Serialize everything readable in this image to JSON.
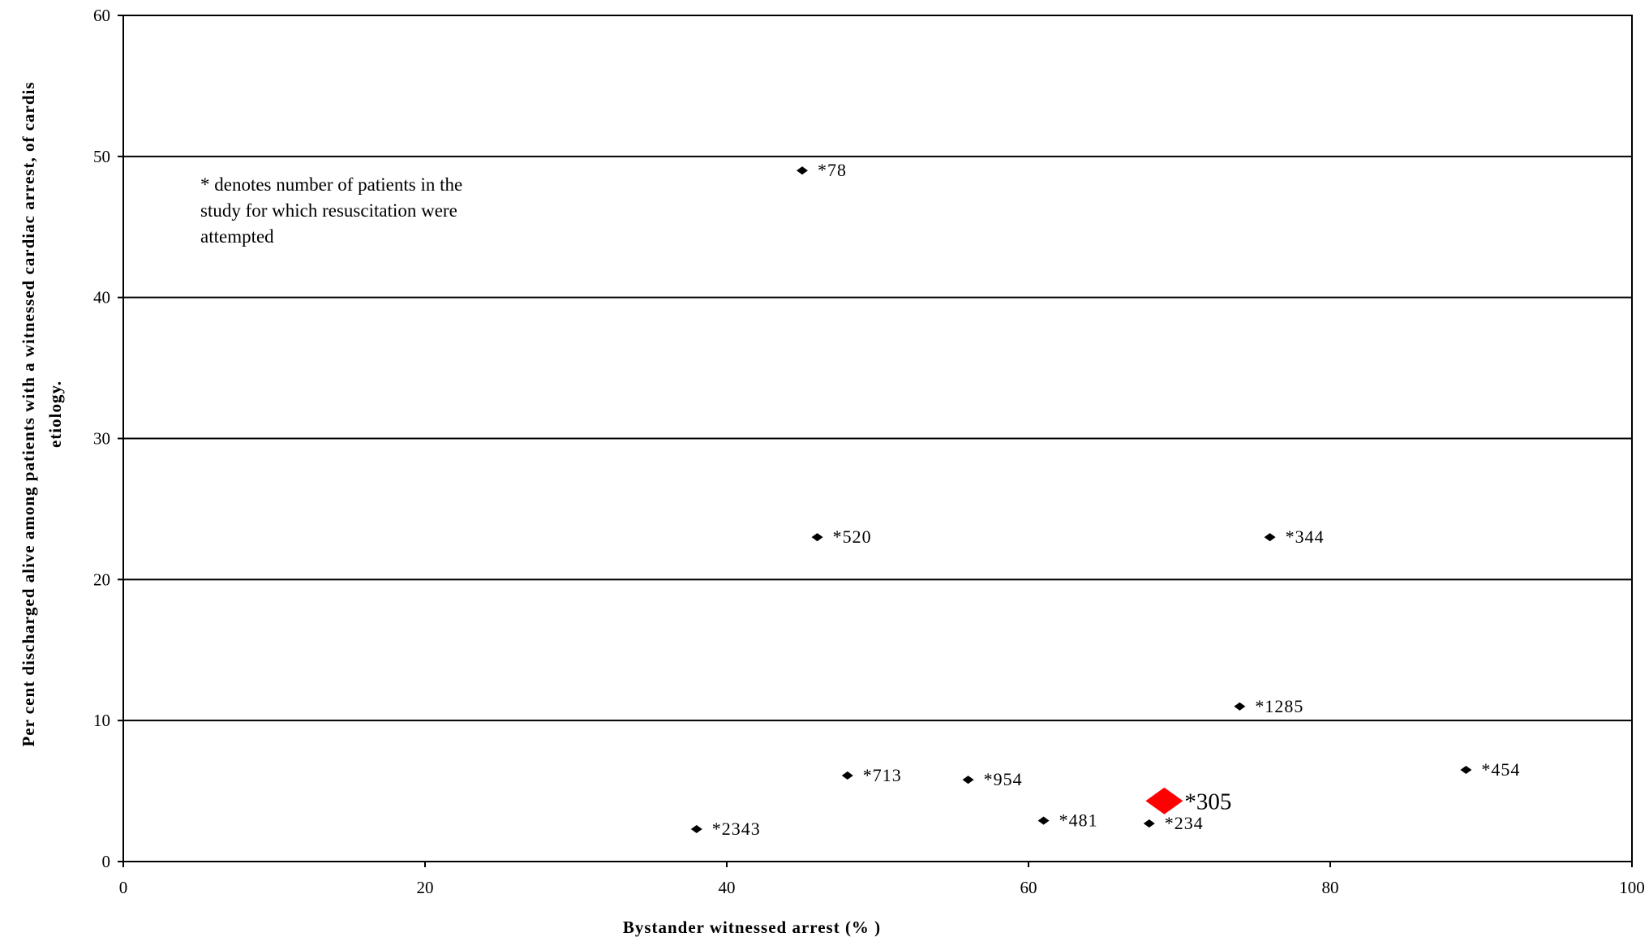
{
  "chart_data": {
    "type": "scatter",
    "title": "",
    "xlabel": "Bystander witnessed arrest (% )",
    "ylabel": [
      "Per cent discharged alive among patients with a witnessed cardiac arrest, of cardis",
      "etiology."
    ],
    "xlim": [
      0,
      100
    ],
    "ylim": [
      0,
      60
    ],
    "x_ticks": [
      0,
      20,
      40,
      60,
      80,
      100
    ],
    "x_tick_labels": [
      "0",
      "20",
      "40",
      "60",
      "80",
      "100"
    ],
    "y_ticks": [
      0,
      10,
      20,
      30,
      40,
      50,
      60
    ],
    "y_tick_labels": [
      "0",
      "10",
      "20",
      "30",
      "40",
      "50",
      "60"
    ],
    "grid": "horizontal",
    "annotation": [
      "* denotes number of patients in the",
      "study for which resuscitation were",
      "attempted"
    ],
    "points": [
      {
        "x": 45,
        "y": 49,
        "label": "*78"
      },
      {
        "x": 46,
        "y": 23,
        "label": "*520"
      },
      {
        "x": 76,
        "y": 23,
        "label": "*344"
      },
      {
        "x": 74,
        "y": 11,
        "label": "*1285"
      },
      {
        "x": 48,
        "y": 6.1,
        "label": "*713"
      },
      {
        "x": 56,
        "y": 5.8,
        "label": "*954"
      },
      {
        "x": 89,
        "y": 6.5,
        "label": "*454"
      },
      {
        "x": 61,
        "y": 2.9,
        "label": "*481"
      },
      {
        "x": 68,
        "y": 2.7,
        "label": "*234"
      },
      {
        "x": 38,
        "y": 2.3,
        "label": "*2343"
      },
      {
        "x": 69,
        "y": 4.3,
        "label": "*305",
        "highlight": true
      }
    ],
    "colors": {
      "marker": "#000000",
      "highlight_marker": "#ff0000",
      "grid": "#000000",
      "frame": "#000000"
    }
  }
}
